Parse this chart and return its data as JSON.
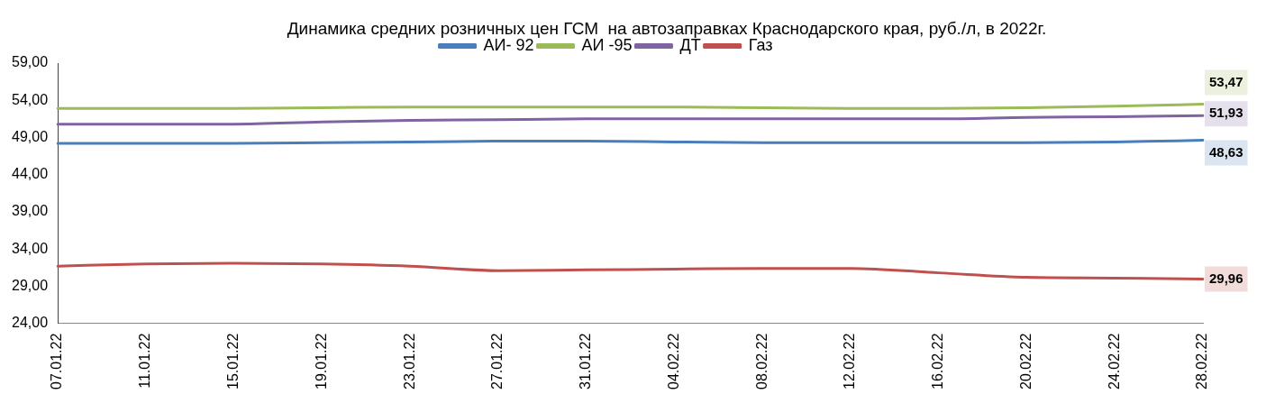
{
  "chart_data": {
    "type": "line",
    "title": "Динамика средних розничных цен ГСМ  на автозаправках Краснодарского края, руб./л, в 2022г.",
    "categories": [
      "07.01.22",
      "11.01.22",
      "15.01.22",
      "19.01.22",
      "23.01.22",
      "27.01.22",
      "31.01.22",
      "04.02.22",
      "08.02.22",
      "12.02.22",
      "16.02.22",
      "20.02.22",
      "24.02.22",
      "28.02.22"
    ],
    "series": [
      {
        "name": "АИ- 92",
        "color": "#4a7ebb",
        "values": [
          48.2,
          48.2,
          48.2,
          48.3,
          48.4,
          48.5,
          48.5,
          48.4,
          48.3,
          48.3,
          48.3,
          48.3,
          48.4,
          48.63
        ],
        "value_labels": [
          null,
          null,
          null,
          null,
          null,
          null,
          null,
          null,
          null,
          null,
          null,
          null,
          null,
          "48,63"
        ]
      },
      {
        "name": "АИ -95",
        "color": "#9bbb59",
        "values": [
          52.9,
          52.9,
          52.9,
          53.0,
          53.1,
          53.1,
          53.1,
          53.1,
          53.0,
          52.9,
          52.9,
          53.0,
          53.2,
          53.47
        ],
        "value_labels": [
          null,
          null,
          null,
          null,
          null,
          null,
          null,
          null,
          null,
          null,
          null,
          null,
          null,
          "53,47"
        ]
      },
      {
        "name": "ДТ",
        "color": "#8064a2",
        "values": [
          50.8,
          50.8,
          50.8,
          51.1,
          51.3,
          51.4,
          51.5,
          51.5,
          51.5,
          51.5,
          51.5,
          51.7,
          51.8,
          51.93
        ],
        "value_labels": [
          null,
          null,
          null,
          null,
          null,
          null,
          null,
          null,
          null,
          null,
          null,
          null,
          null,
          "51,93"
        ]
      },
      {
        "name": "Газ",
        "color": "#c0504d",
        "values": [
          31.7,
          32.0,
          32.1,
          32.0,
          31.7,
          31.1,
          31.2,
          31.3,
          31.4,
          31.4,
          30.8,
          30.2,
          30.1,
          29.96
        ],
        "value_labels": [
          null,
          null,
          null,
          null,
          null,
          null,
          null,
          null,
          null,
          null,
          null,
          null,
          null,
          "29,96"
        ]
      }
    ],
    "ylim": [
      24,
      59
    ],
    "yticks": [
      {
        "value": 24,
        "label": "24,00"
      },
      {
        "value": 29,
        "label": "29,00"
      },
      {
        "value": 34,
        "label": "34,00"
      },
      {
        "value": 39,
        "label": "39,00"
      },
      {
        "value": 44,
        "label": "44,00"
      },
      {
        "value": 49,
        "label": "49,00"
      },
      {
        "value": 54,
        "label": "54,00"
      },
      {
        "value": 59,
        "label": "59,00"
      }
    ],
    "legend": "top",
    "grid": false,
    "marker": "none",
    "line_style": "solid"
  }
}
